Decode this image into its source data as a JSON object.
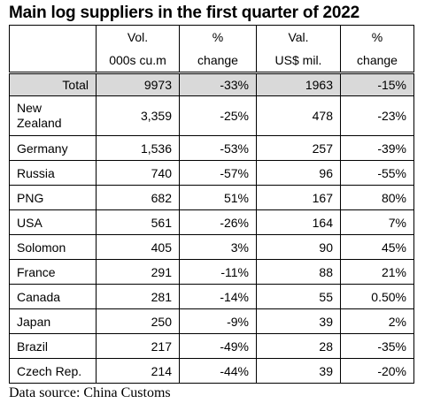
{
  "title": "Main log suppliers in the first quarter of 2022",
  "header": {
    "col1": [
      "Vol.",
      "000s cu.m"
    ],
    "col2": [
      "%",
      "change"
    ],
    "col3": [
      "Val.",
      "US$ mil."
    ],
    "col4": [
      "%",
      "change"
    ]
  },
  "total": {
    "label": "Total",
    "vol": "9973",
    "vol_change": "-33%",
    "val": "1963",
    "val_change": "-15%"
  },
  "rows": [
    {
      "country": "New Zealand",
      "vol": "3,359",
      "vol_change": "-25%",
      "val": "478",
      "val_change": "-23%"
    },
    {
      "country": "Germany",
      "vol": "1,536",
      "vol_change": "-53%",
      "val": "257",
      "val_change": "-39%"
    },
    {
      "country": "Russia",
      "vol": "740",
      "vol_change": "-57%",
      "val": "96",
      "val_change": "-55%"
    },
    {
      "country": "PNG",
      "vol": "682",
      "vol_change": "51%",
      "val": "167",
      "val_change": "80%"
    },
    {
      "country": "USA",
      "vol": "561",
      "vol_change": "-26%",
      "val": "164",
      "val_change": "7%"
    },
    {
      "country": "Solomon",
      "vol": "405",
      "vol_change": "3%",
      "val": "90",
      "val_change": "45%"
    },
    {
      "country": "France",
      "vol": "291",
      "vol_change": "-11%",
      "val": "88",
      "val_change": "21%"
    },
    {
      "country": "Canada",
      "vol": "281",
      "vol_change": "-14%",
      "val": "55",
      "val_change": "0.50%"
    },
    {
      "country": "Japan",
      "vol": "250",
      "vol_change": "-9%",
      "val": "39",
      "val_change": "2%"
    },
    {
      "country": "Brazil",
      "vol": "217",
      "vol_change": "-49%",
      "val": "28",
      "val_change": "-35%"
    },
    {
      "country": "Czech Rep.",
      "vol": "214",
      "vol_change": "-44%",
      "val": "39",
      "val_change": "-20%"
    }
  ],
  "source": "Data source: China Customs"
}
